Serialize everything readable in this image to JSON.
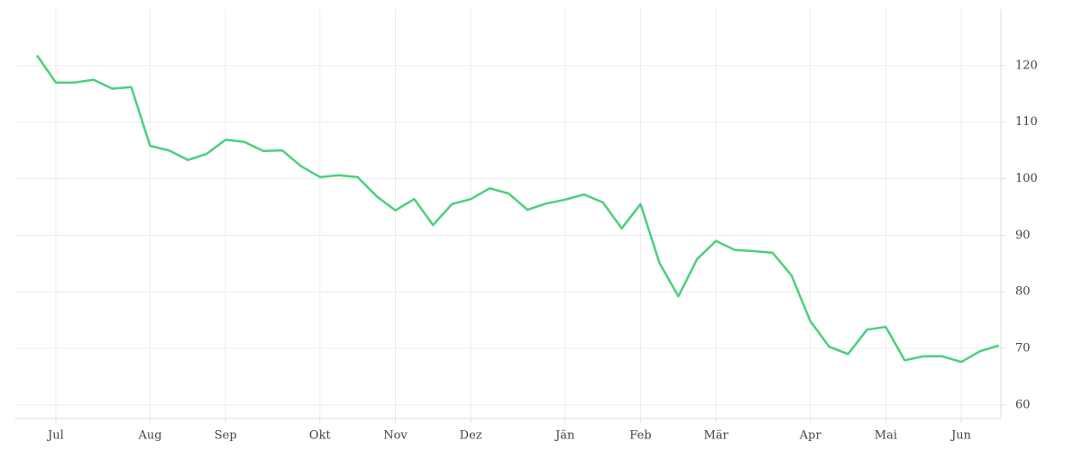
{
  "chart_data": {
    "type": "line",
    "categories": [
      null,
      "Jul",
      null,
      null,
      null,
      null,
      "Aug",
      null,
      null,
      null,
      "Sep",
      null,
      null,
      null,
      null,
      "Okt",
      null,
      null,
      null,
      "Nov",
      null,
      null,
      null,
      "Dez",
      null,
      null,
      null,
      null,
      "Jän",
      null,
      null,
      null,
      "Feb",
      null,
      null,
      null,
      "Mär",
      null,
      null,
      null,
      null,
      "Apr",
      null,
      null,
      null,
      "Mai",
      null,
      null,
      null,
      "Jun",
      null,
      null
    ],
    "series": [
      {
        "color": "#4cd07d",
        "values": [
          121.8,
          117.0,
          117.0,
          117.5,
          115.9,
          116.2,
          105.8,
          105.0,
          103.3,
          104.4,
          106.9,
          106.5,
          104.9,
          105.0,
          102.2,
          100.3,
          100.6,
          100.3,
          96.9,
          94.4,
          96.4,
          91.8,
          95.5,
          96.4,
          98.3,
          97.4,
          94.5,
          95.6,
          96.3,
          97.2,
          95.8,
          91.2,
          95.5,
          85.1,
          79.2,
          85.8,
          89.0,
          87.4,
          87.2,
          86.9,
          82.9,
          74.8,
          70.3,
          69.0,
          73.3,
          73.8,
          67.9,
          68.6,
          68.6,
          67.6,
          69.5,
          70.5
        ]
      }
    ],
    "ylim": [
      57.6,
      130
    ],
    "yticks": [
      60,
      70,
      80,
      90,
      100,
      110,
      120
    ],
    "grid": true
  }
}
